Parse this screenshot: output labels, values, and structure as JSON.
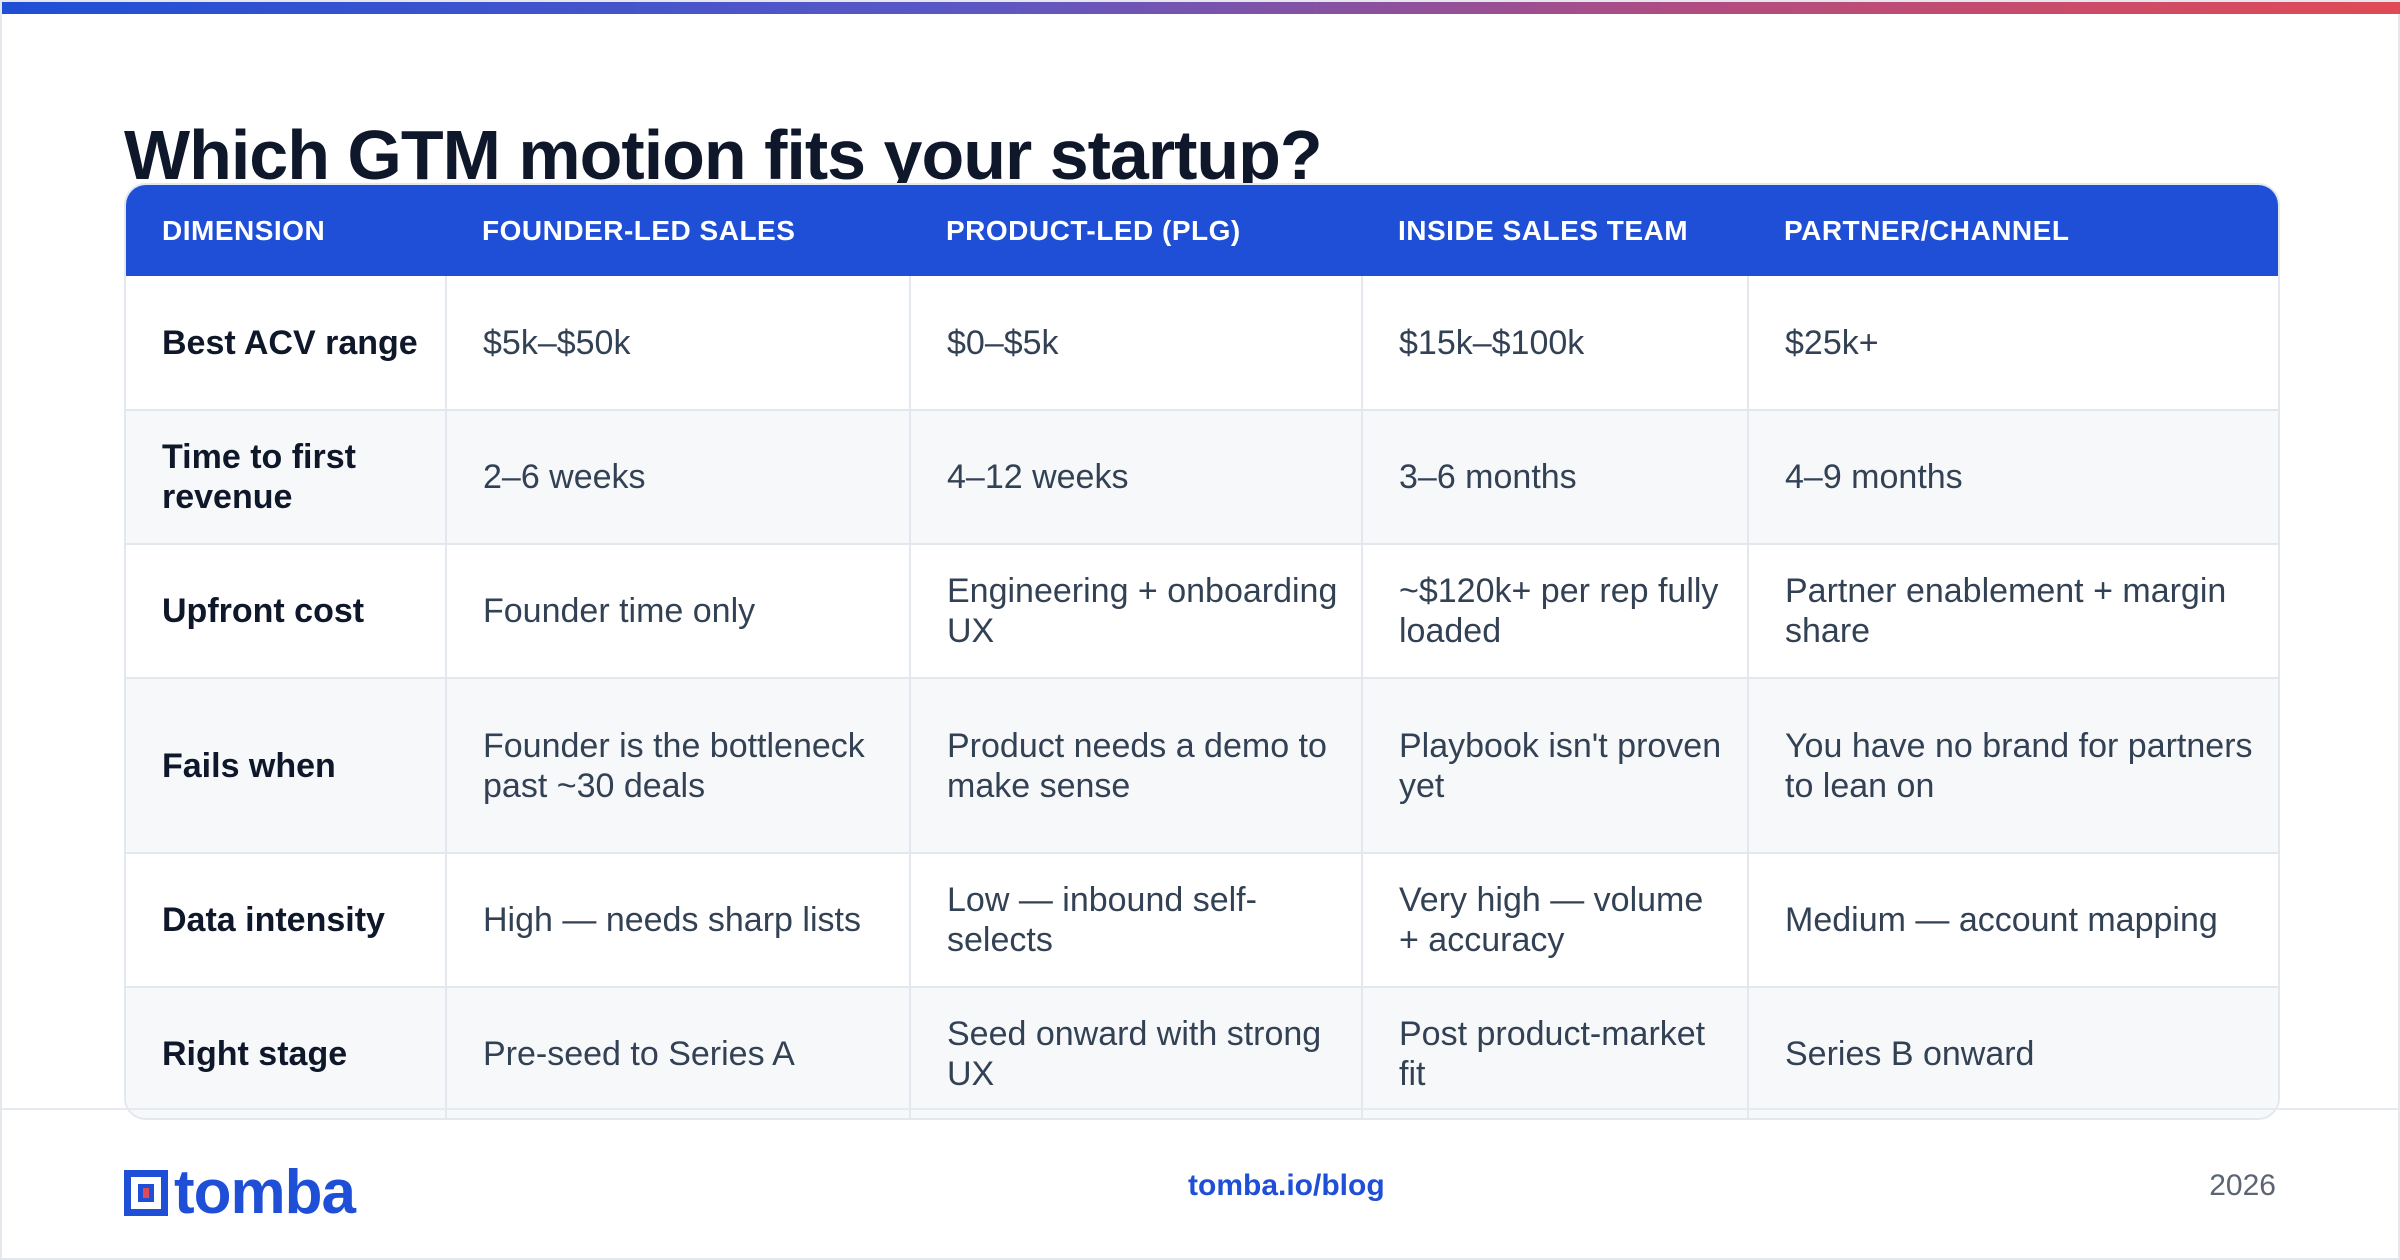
{
  "title": "Which GTM motion fits your startup?",
  "colors": {
    "accent": "#1f4fd6",
    "title": "#0f172a",
    "body_text": "#334155",
    "gradient": [
      "#1f4fd6",
      "#e04a55"
    ]
  },
  "table": {
    "headers": [
      "DIMENSION",
      "FOUNDER-LED SALES",
      "PRODUCT-LED (PLG)",
      "INSIDE SALES TEAM",
      "PARTNER/CHANNEL"
    ],
    "rows": [
      [
        "Best ACV range",
        "$5k–$50k",
        "$0–$5k",
        "$15k–$100k",
        "$25k+"
      ],
      [
        "Time to first revenue",
        "2–6 weeks",
        "4–12 weeks",
        "3–6 months",
        "4–9 months"
      ],
      [
        "Upfront cost",
        "Founder time only",
        "Engineering + onboarding UX",
        "~$120k+ per rep fully loaded",
        "Partner enablement + margin share"
      ],
      [
        "Fails when",
        "Founder is the bottleneck past ~30 deals",
        "Product needs a demo to make sense",
        "Playbook isn't proven yet",
        "You have no brand for partners to lean on"
      ],
      [
        "Data intensity",
        "High — needs sharp lists",
        "Low — inbound self-selects",
        "Very high — volume + accuracy",
        "Medium — account mapping"
      ],
      [
        "Right stage",
        "Pre-seed to Series A",
        "Seed onward with strong UX",
        "Post product-market fit",
        "Series B onward"
      ]
    ]
  },
  "footer": {
    "logo_text": "tomba",
    "logo_icon": "tomba-logo-mark",
    "url": "tomba.io/blog",
    "year": "2026"
  }
}
